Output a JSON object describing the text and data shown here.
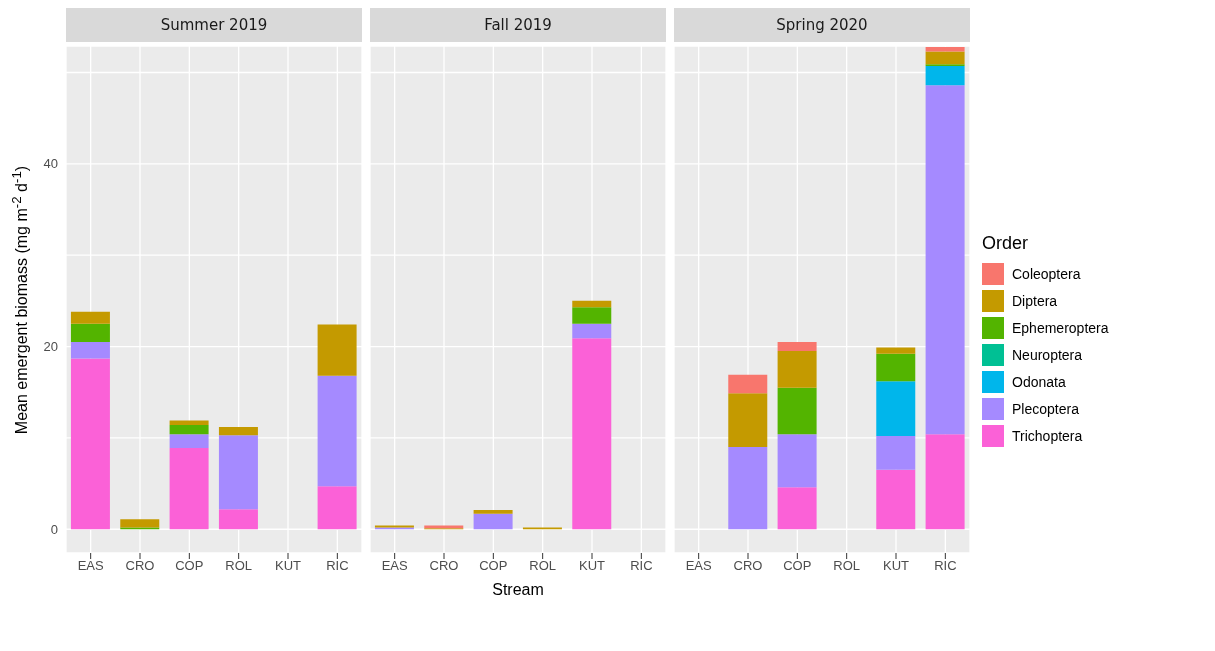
{
  "chart_data": [
    {
      "type": "bar",
      "title": "Summer 2019",
      "ylabel": "Mean emergent biomass (mg m$^{-2}$ d$^{-1}$)",
      "categories": [
        "EAS",
        "CRO",
        "COP",
        "ROL",
        "KUT",
        "RIC"
      ],
      "stacked": true,
      "ylim": [
        -2.6,
        52.9
      ],
      "yticks": [
        0,
        {
          "value": 10,
          "label": null
        },
        20,
        {
          "value": 30,
          "label": null
        },
        40,
        {
          "value": 50,
          "label": null
        }
      ],
      "grid": true,
      "series": [
        {
          "color": "#fb61d7",
          "values": [
            18.7,
            0,
            8.9,
            2.2,
            0,
            4.7
          ]
        },
        {
          "color": "#a58aff",
          "values": [
            1.8,
            0,
            1.5,
            8.1,
            0,
            12.1
          ]
        },
        {
          "color": "#53b400",
          "values": [
            2.0,
            0.2,
            1.0,
            0,
            0,
            0
          ]
        },
        {
          "color": "#c49a00",
          "values": [
            1.3,
            0.9,
            0.5,
            0.9,
            0,
            5.6
          ]
        }
      ]
    },
    {
      "type": "bar",
      "title": "Fall 2019",
      "xlabel": "Stream",
      "categories": [
        "EAS",
        "CRO",
        "COP",
        "ROL",
        "KUT",
        "RIC"
      ],
      "stacked": true,
      "ylim": [
        -2.6,
        52.9
      ],
      "yticks": [
        0,
        {
          "value": 10,
          "label": null
        },
        20,
        {
          "value": 30,
          "label": null
        },
        40,
        {
          "value": 50,
          "label": null
        }
      ],
      "grid": true,
      "tick_labels": "x",
      "series": [
        {
          "color": "#fb61d7",
          "values": [
            0,
            0,
            0,
            0,
            20.9,
            0
          ]
        },
        {
          "color": "#a58aff",
          "values": [
            0.2,
            0,
            1.7,
            0,
            1.6,
            0
          ]
        },
        {
          "color": "#53b400",
          "values": [
            0,
            0,
            0,
            0,
            1.8,
            0
          ]
        },
        {
          "color": "#c49a00",
          "values": [
            0.2,
            0.1,
            0.4,
            0.2,
            0.7,
            0
          ]
        },
        {
          "color": "#f8766d",
          "values": [
            0,
            0.3,
            0,
            0,
            0,
            0
          ]
        }
      ]
    },
    {
      "type": "bar",
      "title": "Spring 2020",
      "legend": "right",
      "legend_title": "Order",
      "categories": [
        "EAS",
        "CRO",
        "COP",
        "ROL",
        "KUT",
        "RIC"
      ],
      "stacked": true,
      "ylim": [
        -2.6,
        52.9
      ],
      "yticks": [
        0,
        {
          "value": 10,
          "label": null
        },
        20,
        {
          "value": 30,
          "label": null
        },
        40,
        {
          "value": 50,
          "label": null
        }
      ],
      "grid": true,
      "tick_labels": "x",
      "series": [
        {
          "name": "Trichoptera",
          "color": "#fb61d7",
          "values": [
            0,
            0,
            4.6,
            0,
            6.5,
            10.4
          ]
        },
        {
          "name": "Plecoptera",
          "color": "#a58aff",
          "values": [
            0,
            9.0,
            5.8,
            0,
            3.7,
            38.2
          ]
        },
        {
          "name": "Odonata",
          "color": "#00b6eb",
          "values": [
            0,
            0,
            0,
            0,
            6.0,
            2.1
          ]
        },
        {
          "name": "Neuroptera",
          "color": "#00c094",
          "values": [
            0,
            0,
            0,
            0,
            0,
            0
          ]
        },
        {
          "name": "Ephemeroptera",
          "color": "#53b400",
          "values": [
            0,
            0,
            5.1,
            0,
            3.0,
            0.2
          ]
        },
        {
          "name": "Diptera",
          "color": "#c49a00",
          "values": [
            0,
            5.9,
            4.0,
            0,
            0.7,
            1.4
          ]
        },
        {
          "name": "Coleoptera",
          "color": "#f8766d",
          "values": [
            0,
            2.0,
            1.0,
            0,
            0,
            0.5
          ]
        }
      ]
    }
  ]
}
